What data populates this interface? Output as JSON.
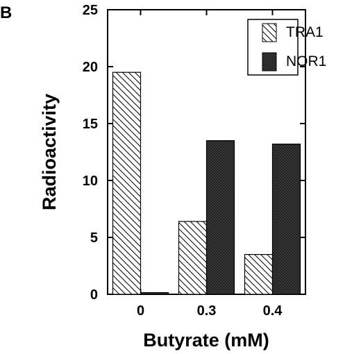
{
  "panel_label": "B",
  "chart_data": {
    "type": "bar",
    "xlabel": "Butyrate (mM)",
    "ylabel": "Radioactivity",
    "ylim": [
      0,
      25
    ],
    "yticks": [
      0,
      5,
      10,
      15,
      20,
      25
    ],
    "categories": [
      "0",
      "0.3",
      "0.4"
    ],
    "series": [
      {
        "name": "TRA1",
        "values": [
          19.5,
          6.4,
          3.5
        ],
        "pattern": "diagonal-hatch",
        "color": "#000000"
      },
      {
        "name": "NOR1",
        "values": [
          0.15,
          13.5,
          13.2
        ],
        "pattern": "dense-crosshatch",
        "color": "#222222"
      }
    ],
    "legend_position": "top-right",
    "grid": false
  }
}
